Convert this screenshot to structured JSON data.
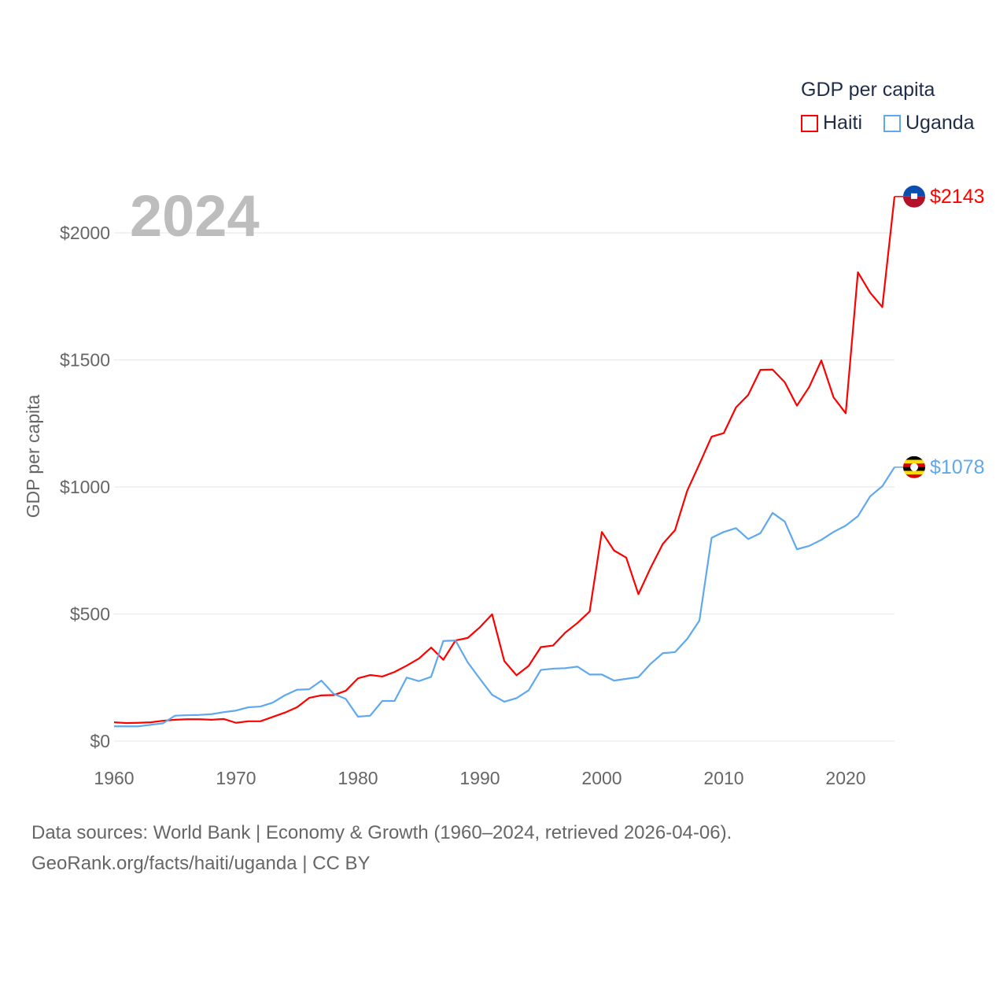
{
  "chart_data": {
    "type": "line",
    "title": "2024",
    "ylabel": "GDP per capita",
    "xlabel": "",
    "legend_title": "GDP per capita",
    "legend_placement": "top-right",
    "xlim": [
      1960,
      2024
    ],
    "ylim": [
      0,
      2200
    ],
    "x_ticks": [
      1960,
      1970,
      1980,
      1990,
      2000,
      2010,
      2020
    ],
    "y_ticks": [
      0,
      500,
      1000,
      1500,
      2000
    ],
    "y_tick_labels": [
      "$0",
      "$500",
      "$1000",
      "$1500",
      "$2000"
    ],
    "grid": true,
    "series": [
      {
        "name": "Haiti",
        "color": "#ff0000",
        "end_label": "$2143",
        "values": [
          74,
          71,
          72,
          74,
          80,
          84,
          86,
          86,
          84,
          87,
          72,
          78,
          78,
          95,
          112,
          133,
          170,
          180,
          181,
          198,
          247,
          260,
          254,
          272,
          297,
          325,
          368,
          320,
          396,
          406,
          448,
          499,
          315,
          259,
          296,
          370,
          376,
          427,
          465,
          510,
          823,
          750,
          722,
          578,
          682,
          776,
          830,
          985,
          1090,
          1198,
          1212,
          1313,
          1362,
          1461,
          1462,
          1412,
          1320,
          1393,
          1498,
          1353,
          1290,
          1845,
          1765,
          1708,
          2143
        ]
      },
      {
        "name": "Uganda",
        "color": "#5fa8ee",
        "end_label": "$1078",
        "values": [
          58,
          58,
          58,
          64,
          70,
          100,
          102,
          103,
          106,
          114,
          120,
          133,
          136,
          151,
          180,
          202,
          204,
          238,
          186,
          166,
          96,
          100,
          158,
          158,
          250,
          236,
          253,
          394,
          396,
          310,
          245,
          182,
          155,
          169,
          200,
          280,
          285,
          287,
          293,
          262,
          262,
          238,
          245,
          252,
          304,
          346,
          350,
          402,
          474,
          800,
          823,
          838,
          795,
          818,
          898,
          864,
          755,
          768,
          792,
          823,
          848,
          885,
          963,
          1003,
          1078
        ]
      }
    ]
  },
  "footer": {
    "line1": "Data sources: World Bank | Economy & Growth (1960–2024, retrieved 2026-04-06).",
    "line2": "GeoRank.org/facts/haiti/uganda | CC BY"
  }
}
